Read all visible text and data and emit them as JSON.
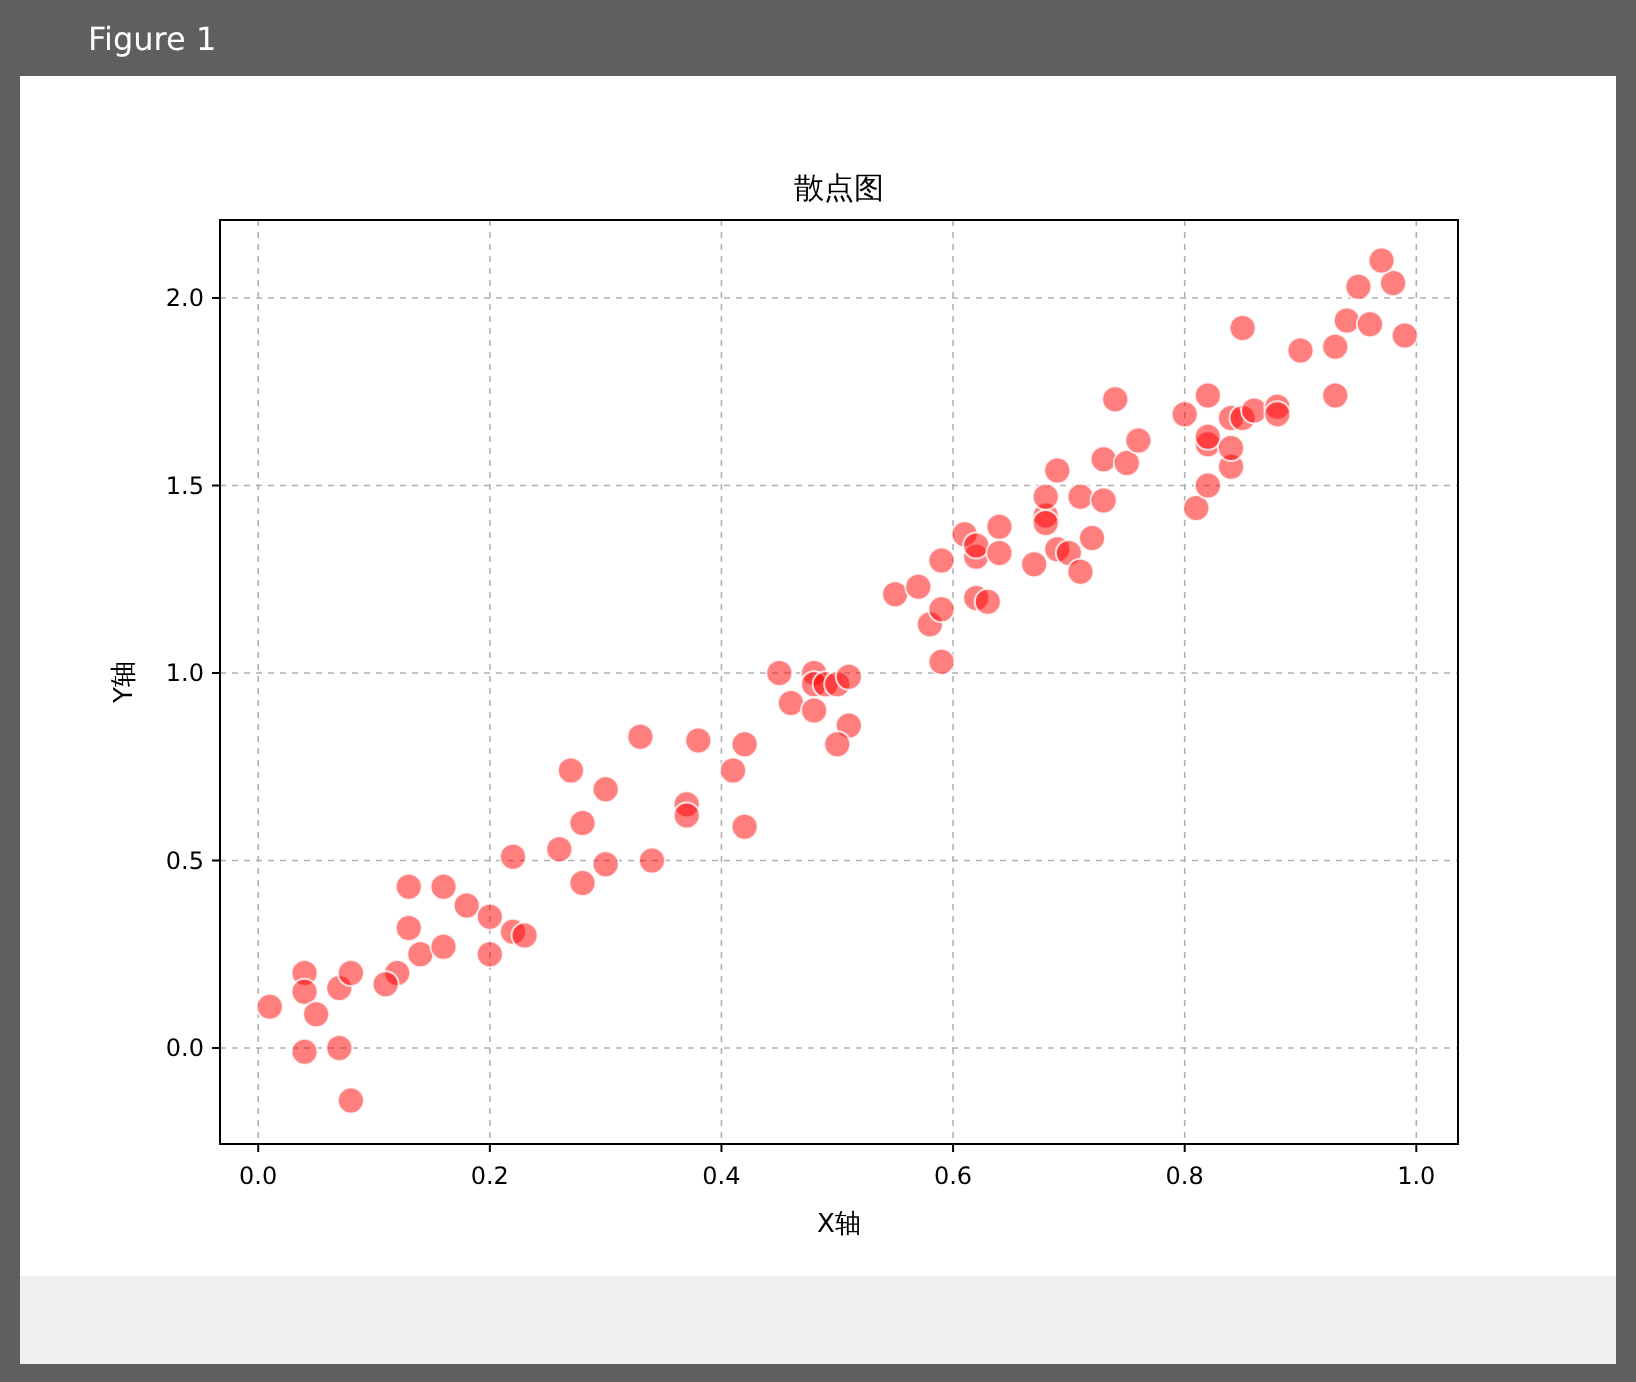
{
  "chart_data": {
    "type": "scatter",
    "title": "散点图",
    "xlabel": "X轴",
    "ylabel": "Y轴",
    "annotations": [
      "Figure 1"
    ],
    "xlim": [
      -0.033,
      1.036
    ],
    "ylim": [
      -0.256,
      2.208
    ],
    "xticks": [
      {
        "value": 0,
        "label": "0.0"
      },
      0.2,
      0.4,
      0.6,
      0.8,
      {
        "value": 1,
        "label": "1.0"
      }
    ],
    "yticks": [
      {
        "value": 0,
        "label": "0.0"
      },
      0.5,
      {
        "value": 1,
        "label": "1.0"
      },
      1.5,
      {
        "value": 2,
        "label": "2.0"
      }
    ],
    "grid": true,
    "marker": "circle",
    "series": [
      {
        "color": "#ff0000",
        "x": [
          0.01,
          0.04,
          0.04,
          0.05,
          0.07,
          0.08,
          0.04,
          0.07,
          0.08,
          0.12,
          0.11,
          0.13,
          0.14,
          0.13,
          0.16,
          0.16,
          0.18,
          0.2,
          0.2,
          0.22,
          0.23,
          0.22,
          0.26,
          0.27,
          0.28,
          0.3,
          0.28,
          0.3,
          0.33,
          0.34,
          0.38,
          0.37,
          0.37,
          0.41,
          0.42,
          0.42,
          0.45,
          0.46,
          0.48,
          0.48,
          0.49,
          0.48,
          0.5,
          0.51,
          0.51,
          0.5,
          0.59,
          0.58,
          0.59,
          0.55,
          0.57,
          0.59,
          0.61,
          0.62,
          0.62,
          0.64,
          0.64,
          0.62,
          0.63,
          0.67,
          0.69,
          0.7,
          0.71,
          0.72,
          0.68,
          0.68,
          0.68,
          0.71,
          0.73,
          0.69,
          0.73,
          0.75,
          0.81,
          0.8,
          0.82,
          0.84,
          0.82,
          0.82,
          0.84,
          0.84,
          0.82,
          0.85,
          0.86,
          0.88,
          0.88,
          0.85,
          0.9,
          0.93,
          0.93,
          0.94,
          0.96,
          0.99,
          0.95,
          0.98,
          0.97,
          0.74,
          0.76
        ],
        "values": [
          0.11,
          0.2,
          0.15,
          0.09,
          0.16,
          0.2,
          -0.01,
          0.0,
          -0.14,
          0.2,
          0.17,
          0.32,
          0.25,
          0.43,
          0.43,
          0.27,
          0.38,
          0.35,
          0.25,
          0.31,
          0.3,
          0.51,
          0.53,
          0.74,
          0.6,
          0.69,
          0.44,
          0.49,
          0.83,
          0.5,
          0.82,
          0.65,
          0.62,
          0.74,
          0.81,
          0.59,
          1.0,
          0.92,
          1.0,
          0.97,
          0.97,
          0.9,
          0.97,
          0.99,
          0.86,
          0.81,
          1.03,
          1.13,
          1.17,
          1.21,
          1.23,
          1.3,
          1.37,
          1.31,
          1.34,
          1.39,
          1.32,
          1.2,
          1.19,
          1.29,
          1.33,
          1.32,
          1.27,
          1.36,
          1.42,
          1.4,
          1.47,
          1.47,
          1.46,
          1.54,
          1.57,
          1.56,
          1.44,
          1.69,
          1.5,
          1.55,
          1.61,
          1.63,
          1.6,
          1.68,
          1.74,
          1.68,
          1.7,
          1.71,
          1.69,
          1.92,
          1.86,
          1.87,
          1.74,
          1.94,
          1.93,
          1.9,
          2.03,
          2.04,
          2.1,
          1.73,
          1.62
        ]
      }
    ]
  }
}
